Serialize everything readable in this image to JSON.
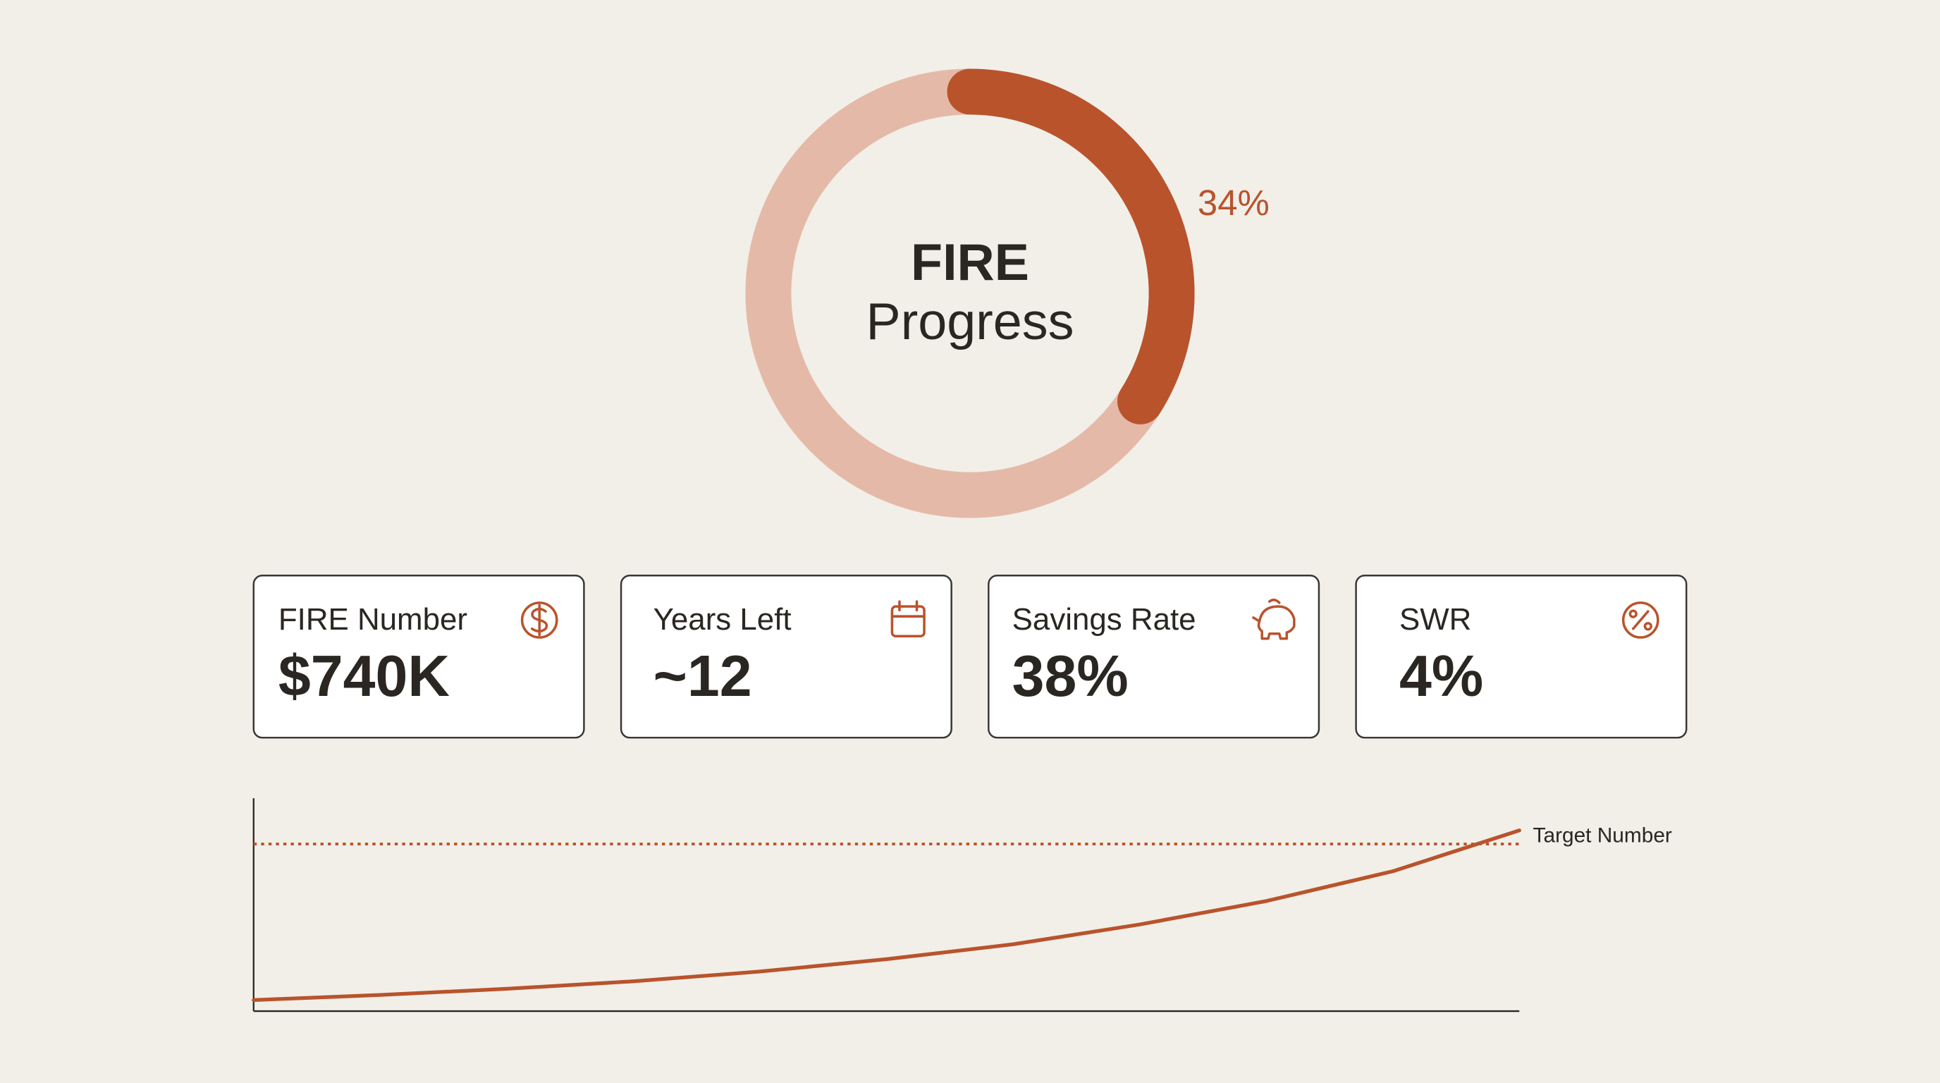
{
  "chart_data": [
    {
      "type": "donut",
      "title_lines": [
        "FIRE",
        "Progress"
      ],
      "values": [
        34
      ],
      "value_labels": [
        "34%"
      ],
      "color": "#b9532c",
      "track_color": "#e5b9a8"
    },
    {
      "type": "line",
      "x": [
        0,
        1,
        2,
        3,
        4,
        5,
        6,
        7,
        8,
        9,
        10
      ],
      "xlim": [
        0,
        10
      ],
      "ylim": [
        0,
        100
      ],
      "series": [
        {
          "color": "#b9532c",
          "values": [
            5.2,
            7.6,
            10.5,
            14.0,
            18.6,
            24.4,
            31.4,
            40.7,
            51.7,
            65.7,
            84.9
          ]
        }
      ],
      "target": 78.5,
      "target_label": "Target Number"
    }
  ],
  "cards": [
    {
      "label": "FIRE Number",
      "value": "$740K"
    },
    {
      "label": "Years Left",
      "value": "~12"
    },
    {
      "label": "Savings Rate",
      "value": "38%"
    },
    {
      "label": "SWR",
      "value": "4%"
    }
  ]
}
